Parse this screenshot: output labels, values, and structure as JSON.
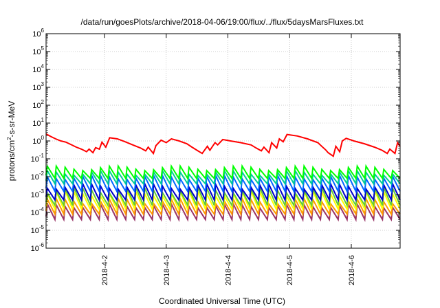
{
  "chart_data": {
    "type": "line",
    "title": "/data/run/goesPlots/archive/2018-04-06/19:00/flux/../flux/5daysMarsFluxes.txt",
    "xlabel": "Coordinated Universal Time (UTC)",
    "ylabel": "protons/cm²-s-sr-MeV",
    "ylabel_parts": [
      "protons/cm",
      "2",
      "-s-sr-MeV"
    ],
    "yscale": "log",
    "ylim_exp": [
      -6,
      6
    ],
    "y_ticks": [
      {
        "base": "10",
        "exp": "-6"
      },
      {
        "base": "10",
        "exp": "-5"
      },
      {
        "base": "10",
        "exp": "-4"
      },
      {
        "base": "10",
        "exp": "-3"
      },
      {
        "base": "10",
        "exp": "-2"
      },
      {
        "base": "10",
        "exp": "-1"
      },
      {
        "base": "10",
        "exp": "0"
      },
      {
        "base": "10",
        "exp": "1"
      },
      {
        "base": "10",
        "exp": "2"
      },
      {
        "base": "10",
        "exp": "3"
      },
      {
        "base": "10",
        "exp": "4"
      },
      {
        "base": "10",
        "exp": "5"
      },
      {
        "base": "10",
        "exp": "6"
      }
    ],
    "xlim": [
      "2018-04-01 01:15",
      "2018-04-06 19:00"
    ],
    "x_ticks": [
      "2018-4-2",
      "2018-4-3",
      "2018-4-4",
      "2018-4-5",
      "2018-4-6"
    ],
    "grid": true,
    "series": [
      {
        "color": "#ff0000",
        "x": [
          "2018-04-01 01:15",
          "2018-04-01 03:00",
          "2018-04-01 05:00",
          "2018-04-01 07:00",
          "2018-04-01 09:00",
          "2018-04-01 11:00",
          "2018-04-01 13:00",
          "2018-04-01 15:00",
          "2018-04-01 17:00",
          "2018-04-01 18:00",
          "2018-04-01 19:30",
          "2018-04-01 20:30",
          "2018-04-01 22:00",
          "2018-04-01 23:00",
          "2018-04-02 00:30",
          "2018-04-02 02:00",
          "2018-04-02 05:00",
          "2018-04-02 08:00",
          "2018-04-02 11:00",
          "2018-04-02 14:00",
          "2018-04-02 16:00",
          "2018-04-02 17:00",
          "2018-04-02 19:00",
          "2018-04-02 20:00",
          "2018-04-02 22:00",
          "2018-04-03 00:00",
          "2018-04-03 02:00",
          "2018-04-03 05:00",
          "2018-04-03 08:00",
          "2018-04-03 10:00",
          "2018-04-03 12:00",
          "2018-04-03 14:00",
          "2018-04-03 16:00",
          "2018-04-03 17:00",
          "2018-04-03 19:00",
          "2018-04-03 20:00",
          "2018-04-03 22:00",
          "2018-04-04 01:00",
          "2018-04-04 05:00",
          "2018-04-04 09:00",
          "2018-04-04 11:00",
          "2018-04-04 13:00",
          "2018-04-04 14:00",
          "2018-04-04 16:00",
          "2018-04-04 17:00",
          "2018-04-04 19:00",
          "2018-04-04 20:00",
          "2018-04-04 21:30",
          "2018-04-04 23:00",
          "2018-04-05 03:00",
          "2018-04-05 07:00",
          "2018-04-05 11:00",
          "2018-04-05 12:30",
          "2018-04-05 14:00",
          "2018-04-05 15:00",
          "2018-04-05 17:00",
          "2018-04-05 18:00",
          "2018-04-05 19:30",
          "2018-04-05 20:30",
          "2018-04-05 22:00",
          "2018-04-06 01:00",
          "2018-04-06 05:00",
          "2018-04-06 09:00",
          "2018-04-06 12:00",
          "2018-04-06 14:00",
          "2018-04-06 15:00",
          "2018-04-06 17:00",
          "2018-04-06 18:00",
          "2018-04-06 19:00"
        ],
        "values": [
          2.5,
          1.8,
          1.3,
          1.0,
          0.85,
          0.62,
          0.45,
          0.35,
          0.25,
          0.35,
          0.22,
          0.42,
          0.35,
          0.85,
          0.45,
          1.5,
          1.3,
          0.9,
          0.6,
          0.4,
          0.28,
          0.45,
          0.2,
          0.55,
          1.1,
          0.8,
          1.3,
          1.0,
          0.7,
          0.45,
          0.3,
          0.2,
          0.5,
          0.3,
          0.8,
          0.6,
          1.2,
          1.0,
          0.8,
          0.6,
          0.4,
          0.28,
          0.45,
          0.22,
          0.8,
          0.4,
          1.3,
          0.9,
          2.3,
          1.9,
          1.3,
          0.8,
          0.5,
          0.32,
          0.22,
          0.14,
          0.5,
          0.25,
          1.0,
          1.4,
          1.0,
          0.7,
          0.45,
          0.3,
          0.2,
          0.35,
          0.2,
          0.8,
          0.5
        ]
      },
      {
        "color": "#00ff00",
        "cycles": 40,
        "peak_min": 0.022,
        "peak_max": 0.04,
        "trough": 0.008
      },
      {
        "color": "#00cc99",
        "cycles": 40,
        "peak_min": 0.012,
        "peak_max": 0.022,
        "trough": 0.004
      },
      {
        "color": "#0066ff",
        "cycles": 40,
        "peak_min": 0.007,
        "peak_max": 0.012,
        "trough": 0.0015
      },
      {
        "color": "#0000cc",
        "cycles": 40,
        "peak_min": 0.002,
        "peak_max": 0.004,
        "trough": 0.0005
      },
      {
        "color": "#66cc33",
        "cycles": 40,
        "peak_min": 0.0012,
        "peak_max": 0.0025,
        "trough": 0.00025
      },
      {
        "color": "#ffff00",
        "cycles": 40,
        "peak_min": 0.0008,
        "peak_max": 0.0016,
        "trough": 0.00015
      },
      {
        "color": "#ff9900",
        "cycles": 40,
        "peak_min": 0.0003,
        "peak_max": 0.0006,
        "trough": 8e-05
      },
      {
        "color": "#993366",
        "cycles": 40,
        "peak_min": 0.00018,
        "peak_max": 0.0003,
        "trough": 4e-05
      }
    ]
  }
}
